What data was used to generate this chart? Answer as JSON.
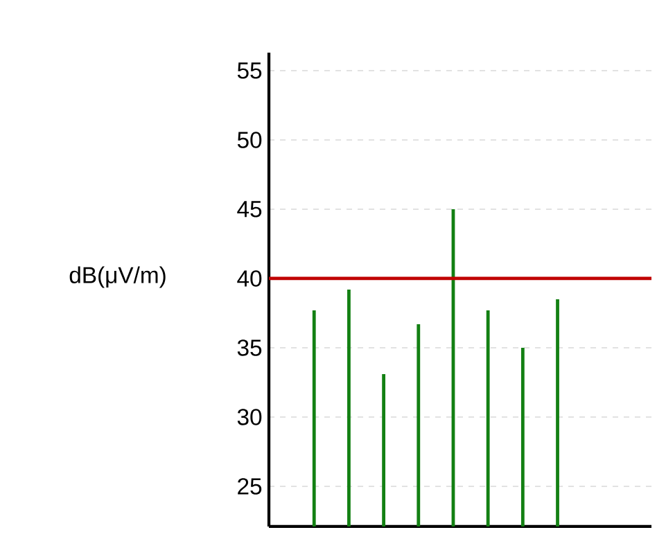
{
  "chart_data": {
    "type": "bar",
    "ylabel": "dB(μV/m)",
    "categories": [
      null,
      null,
      null,
      null,
      null,
      null,
      null,
      null
    ],
    "values": [
      37.7,
      39.2,
      33.1,
      36.7,
      45.0,
      37.7,
      35.0,
      38.5
    ],
    "color": "#138013",
    "ylim": [
      22.1,
      56.3
    ],
    "yticks": [
      25,
      30,
      35,
      40,
      45,
      50,
      55
    ],
    "grid": "y",
    "ref_lines": [
      {
        "axis": "y",
        "value": 40,
        "color": "#c00000"
      }
    ]
  }
}
